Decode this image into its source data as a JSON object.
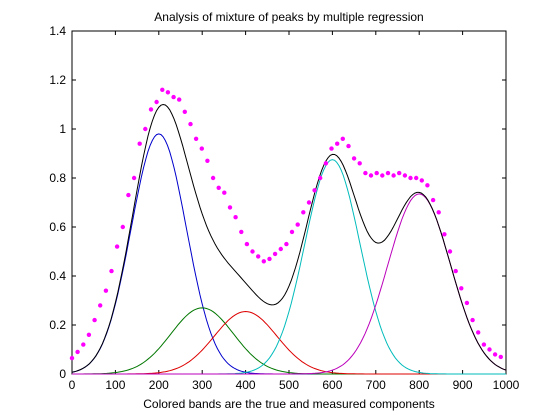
{
  "chart_data": {
    "type": "line",
    "title": "Analysis of mixture of peaks by multiple regression",
    "xlabel": "Colored bands are the true and measured components",
    "ylabel": "",
    "xlim": [
      0,
      1000
    ],
    "ylim": [
      0,
      1.4
    ],
    "xticks": [
      "0",
      "100",
      "200",
      "300",
      "400",
      "500",
      "600",
      "700",
      "800",
      "900",
      "1000"
    ],
    "yticks": [
      "0",
      "0.2",
      "0.4",
      "0.6",
      "0.8",
      "1",
      "1.2",
      "1.4"
    ],
    "grid": false,
    "components": [
      {
        "color": "#0000cc",
        "center": 200,
        "height": 0.98,
        "width": 150
      },
      {
        "color": "#007700",
        "center": 300,
        "height": 0.27,
        "width": 170
      },
      {
        "color": "#dd0000",
        "center": 400,
        "height": 0.255,
        "width": 170
      },
      {
        "color": "#00bbbb",
        "center": 600,
        "height": 0.875,
        "width": 150
      },
      {
        "color": "#bb00bb",
        "center": 800,
        "height": 0.735,
        "width": 170
      }
    ],
    "measured": {
      "color": "#ff00ff",
      "x": [
        0,
        13,
        26,
        39,
        52,
        65,
        78,
        91,
        104,
        117,
        130,
        143,
        156,
        169,
        182,
        195,
        208,
        221,
        234,
        247,
        260,
        273,
        286,
        299,
        312,
        325,
        338,
        351,
        364,
        377,
        390,
        403,
        416,
        429,
        442,
        455,
        468,
        481,
        494,
        507,
        520,
        533,
        546,
        559,
        572,
        585,
        598,
        611,
        624,
        637,
        650,
        663,
        676,
        689,
        702,
        715,
        728,
        741,
        754,
        767,
        780,
        793,
        806,
        819,
        832,
        845,
        858,
        871,
        884,
        897,
        910,
        923,
        936,
        949,
        962,
        975,
        988
      ],
      "y": [
        0.065,
        0.09,
        0.12,
        0.16,
        0.22,
        0.28,
        0.34,
        0.42,
        0.52,
        0.6,
        0.73,
        0.8,
        0.94,
        1.0,
        1.08,
        1.11,
        1.16,
        1.15,
        1.13,
        1.12,
        1.07,
        1.02,
        0.96,
        0.92,
        0.87,
        0.8,
        0.76,
        0.74,
        0.68,
        0.64,
        0.58,
        0.53,
        0.5,
        0.48,
        0.46,
        0.47,
        0.49,
        0.51,
        0.53,
        0.58,
        0.61,
        0.66,
        0.7,
        0.75,
        0.8,
        0.86,
        0.92,
        0.94,
        0.96,
        0.93,
        0.88,
        0.86,
        0.82,
        0.81,
        0.82,
        0.81,
        0.82,
        0.81,
        0.82,
        0.81,
        0.8,
        0.8,
        0.79,
        0.77,
        0.71,
        0.66,
        0.57,
        0.5,
        0.42,
        0.35,
        0.29,
        0.22,
        0.17,
        0.12,
        0.1,
        0.08,
        0.07
      ]
    },
    "fit": {
      "color": "#000000"
    }
  }
}
